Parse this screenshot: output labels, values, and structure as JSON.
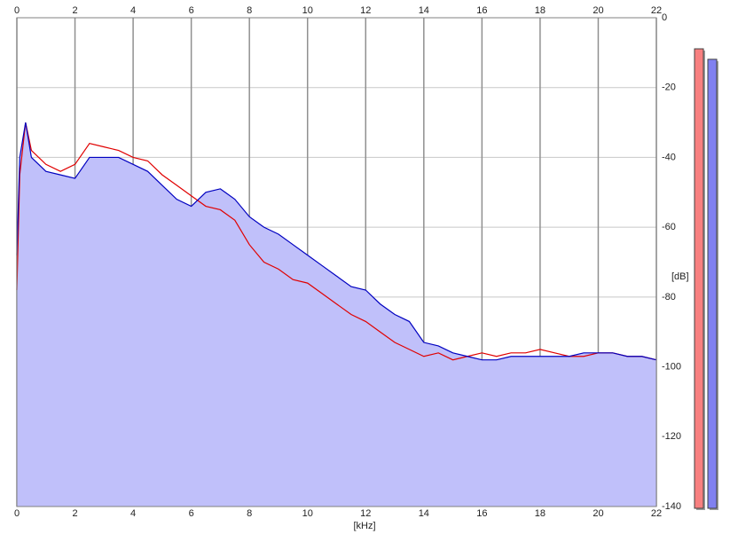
{
  "chart_data": {
    "type": "line",
    "x_label": "[kHz]",
    "y_label": "[dB]",
    "xlim": [
      0,
      22
    ],
    "xticks": [
      0,
      2,
      4,
      6,
      8,
      10,
      12,
      14,
      16,
      18,
      20,
      22
    ],
    "ylim": [
      -140,
      0
    ],
    "yticks": [
      0,
      -20,
      -40,
      -60,
      -80,
      -100,
      -120,
      -140
    ],
    "grid": true,
    "fill_color": "#c0c0fa",
    "x": [
      0,
      0.1,
      0.3,
      0.5,
      1,
      1.5,
      2,
      2.5,
      3,
      3.5,
      4,
      4.5,
      5,
      5.5,
      6,
      6.5,
      7,
      7.5,
      8,
      8.5,
      9,
      9.5,
      10,
      10.5,
      11,
      11.5,
      12,
      12.5,
      13,
      13.5,
      14,
      14.5,
      15,
      15.5,
      16,
      16.5,
      17,
      17.5,
      18,
      18.5,
      19,
      19.5,
      20,
      20.5,
      21,
      21.5,
      22
    ],
    "series": [
      {
        "color": "#e00000",
        "values": [
          -78,
          -45,
          -30,
          -38,
          -42,
          -44,
          -42,
          -36,
          -37,
          -38,
          -40,
          -41,
          -45,
          -48,
          -51,
          -54,
          -55,
          -58,
          -65,
          -70,
          -72,
          -75,
          -76,
          -79,
          -82,
          -85,
          -87,
          -90,
          -93,
          -95,
          -97,
          -96,
          -98,
          -97,
          -96,
          -97,
          -96,
          -96,
          -95,
          -96,
          -97,
          -97,
          -96,
          -96,
          -97,
          -97,
          -98
        ]
      },
      {
        "color": "#0000c0",
        "values": [
          -68,
          -40,
          -30,
          -40,
          -44,
          -45,
          -46,
          -40,
          -40,
          -40,
          -42,
          -44,
          -48,
          -52,
          -54,
          -50,
          -49,
          -52,
          -57,
          -60,
          -62,
          -65,
          -68,
          -71,
          -74,
          -77,
          -78,
          -82,
          -85,
          -87,
          -93,
          -94,
          -96,
          -97,
          -98,
          -98,
          -97,
          -97,
          -97,
          -97,
          -97,
          -96,
          -96,
          -96,
          -97,
          -97,
          -98
        ]
      }
    ],
    "meters": [
      {
        "color": "#f88080",
        "value": -8.9
      },
      {
        "color": "#8080f0",
        "value": -11.9
      }
    ]
  }
}
